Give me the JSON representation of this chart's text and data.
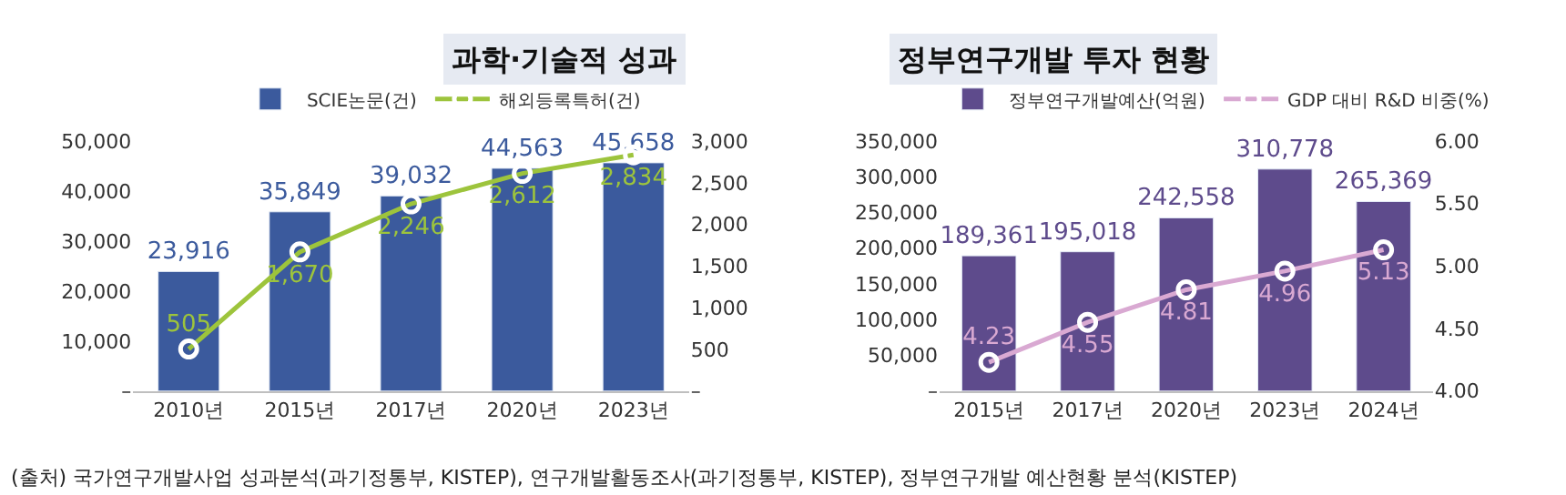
{
  "chart_data": [
    {
      "type": "bar",
      "title": "과학·기술적 성과",
      "categories": [
        "2010년",
        "2015년",
        "2017년",
        "2020년",
        "2023년"
      ],
      "series": [
        {
          "name": "SCIE논문(건)",
          "color": "#3b5a9d",
          "values": [
            23916,
            35849,
            39032,
            44563,
            45658
          ],
          "value_labels": [
            "23,916",
            "35,849",
            "39,032",
            "44,563",
            "45,658"
          ]
        },
        {
          "name": "해외등록특허(건)",
          "type": "line",
          "axis": "y2",
          "color": "#9dc43c",
          "values": [
            505,
            1670,
            2246,
            2612,
            2834
          ],
          "value_labels": [
            "505",
            "1,670",
            "2,246",
            "2,612",
            "2,834"
          ]
        }
      ],
      "ylim": [
        0,
        50000
      ],
      "yticks": [
        {
          "value": 0,
          "label": "–"
        },
        {
          "value": 10000,
          "label": "10,000"
        },
        {
          "value": 20000,
          "label": "20,000"
        },
        {
          "value": 30000,
          "label": "30,000"
        },
        {
          "value": 40000,
          "label": "40,000"
        },
        {
          "value": 50000,
          "label": "50,000"
        }
      ],
      "y2lim": [
        0,
        3000
      ],
      "y2ticks": [
        {
          "value": 0,
          "label": "–"
        },
        {
          "value": 500,
          "label": "500"
        },
        {
          "value": 1000,
          "label": "1,000"
        },
        {
          "value": 1500,
          "label": "1,500"
        },
        {
          "value": 2000,
          "label": "2,000"
        },
        {
          "value": 2500,
          "label": "2,500"
        },
        {
          "value": 3000,
          "label": "3,000"
        }
      ],
      "grid": false,
      "legend": "top",
      "marker": "circle",
      "line_style": "solid",
      "annotations": [
        "(출처) 국가연구개발사업 성과분석(과기정통부, KISTEP), 연구개발활동조사(과기정통부, KISTEP), 정부연구개발 예산현황 분석(KISTEP)"
      ]
    },
    {
      "type": "bar",
      "title": "정부연구개발 투자 현황",
      "categories": [
        "2015년",
        "2017년",
        "2020년",
        "2023년",
        "2024년"
      ],
      "series": [
        {
          "name": "정부연구개발예산(억원)",
          "color": "#5e4b8c",
          "values": [
            189361,
            195018,
            242558,
            310778,
            265369
          ],
          "value_labels": [
            "189,361",
            "195,018",
            "242,558",
            "310,778",
            "265,369"
          ]
        },
        {
          "name": "GDP 대비 R&D 비중(%)",
          "type": "line",
          "axis": "y2",
          "color": "#d9a9d2",
          "values": [
            4.23,
            4.55,
            4.81,
            4.96,
            5.13
          ],
          "value_labels": [
            "4.23",
            "4.55",
            "4.81",
            "4.96",
            "5.13"
          ]
        }
      ],
      "ylim": [
        0,
        350000
      ],
      "yticks": [
        {
          "value": 0,
          "label": "–"
        },
        {
          "value": 50000,
          "label": "50,000"
        },
        {
          "value": 100000,
          "label": "100,000"
        },
        {
          "value": 150000,
          "label": "150,000"
        },
        {
          "value": 200000,
          "label": "200,000"
        },
        {
          "value": 250000,
          "label": "250,000"
        },
        {
          "value": 300000,
          "label": "300,000"
        },
        {
          "value": 350000,
          "label": "350,000"
        }
      ],
      "y2lim": [
        4,
        6
      ],
      "y2ticks": [
        {
          "value": 4,
          "label": "4.00"
        },
        {
          "value": 4.5,
          "label": "4.50"
        },
        {
          "value": 5,
          "label": "5.00"
        },
        {
          "value": 5.5,
          "label": "5.50"
        },
        {
          "value": 6,
          "label": "6.00"
        }
      ],
      "grid": false,
      "legend": "top",
      "marker": "circle",
      "line_style": "solid"
    }
  ]
}
